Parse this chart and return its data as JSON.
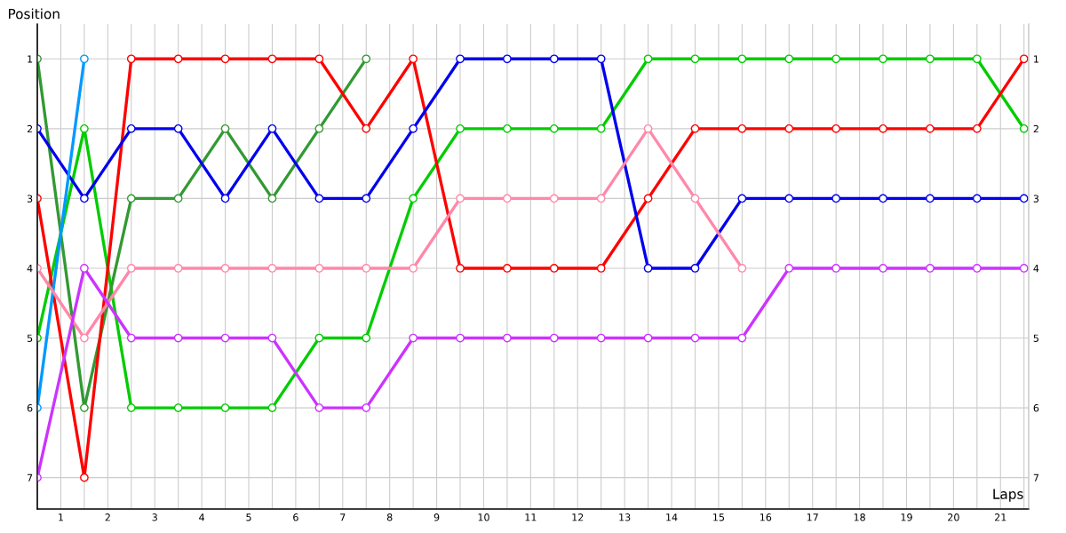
{
  "chart_data": {
    "type": "line",
    "xlabel": "Laps",
    "ylabel": "Position",
    "x": [
      0,
      1,
      2,
      3,
      4,
      5,
      6,
      7,
      8,
      9,
      10,
      11,
      12,
      13,
      14,
      15,
      16,
      17,
      18,
      19,
      20,
      21
    ],
    "series": [
      {
        "color": "#00cc00",
        "values": [
          5,
          2,
          6,
          6,
          6,
          6,
          5,
          5,
          3,
          2,
          2,
          2,
          2,
          1,
          1,
          1,
          1,
          1,
          1,
          1,
          1,
          2
        ]
      },
      {
        "color": "#339933",
        "values": [
          1,
          6,
          3,
          3,
          2,
          3,
          2,
          1,
          null,
          null,
          null,
          null,
          null,
          null,
          null,
          null,
          null,
          null,
          null,
          null,
          null,
          null
        ]
      },
      {
        "color": "#ff0000",
        "values": [
          3,
          7,
          1,
          1,
          1,
          1,
          1,
          2,
          1,
          4,
          4,
          4,
          4,
          3,
          2,
          2,
          2,
          2,
          2,
          2,
          2,
          1
        ]
      },
      {
        "color": "#0000ee",
        "values": [
          2,
          3,
          2,
          2,
          3,
          2,
          3,
          3,
          2,
          1,
          1,
          1,
          1,
          4,
          4,
          3,
          3,
          3,
          3,
          3,
          3,
          3
        ]
      },
      {
        "color": "#0099ff",
        "values": [
          6,
          1,
          null,
          null,
          null,
          null,
          null,
          null,
          null,
          null,
          null,
          null,
          null,
          null,
          null,
          null,
          null,
          null,
          null,
          null,
          null,
          null
        ]
      },
      {
        "color": "#ff88aa",
        "values": [
          4,
          5,
          4,
          4,
          4,
          4,
          4,
          4,
          4,
          3,
          3,
          3,
          3,
          2,
          3,
          4,
          null,
          null,
          null,
          null,
          null,
          null
        ]
      },
      {
        "color": "#cc33ff",
        "values": [
          7,
          4,
          5,
          5,
          5,
          5,
          6,
          6,
          5,
          5,
          5,
          5,
          5,
          5,
          5,
          5,
          4,
          4,
          4,
          4,
          4,
          4
        ]
      }
    ],
    "xlim": [
      0,
      21.1
    ],
    "xticks": [
      {
        "value": 0,
        "label": null
      },
      {
        "value": 0.5,
        "label": "1"
      },
      {
        "value": 1,
        "label": null
      },
      {
        "value": 1.5,
        "label": "2"
      },
      {
        "value": 2,
        "label": null
      },
      {
        "value": 2.5,
        "label": "3"
      },
      {
        "value": 3,
        "label": null
      },
      {
        "value": 3.5,
        "label": "4"
      },
      {
        "value": 4,
        "label": null
      },
      {
        "value": 4.5,
        "label": "5"
      },
      {
        "value": 5,
        "label": null
      },
      {
        "value": 5.5,
        "label": "6"
      },
      {
        "value": 6,
        "label": null
      },
      {
        "value": 6.5,
        "label": "7"
      },
      {
        "value": 7,
        "label": null
      },
      {
        "value": 7.5,
        "label": "8"
      },
      {
        "value": 8,
        "label": null
      },
      {
        "value": 8.5,
        "label": "9"
      },
      {
        "value": 9,
        "label": null
      },
      {
        "value": 9.5,
        "label": "10"
      },
      {
        "value": 10,
        "label": null
      },
      {
        "value": 10.5,
        "label": "11"
      },
      {
        "value": 11,
        "label": null
      },
      {
        "value": 11.5,
        "label": "12"
      },
      {
        "value": 12,
        "label": null
      },
      {
        "value": 12.5,
        "label": "13"
      },
      {
        "value": 13,
        "label": null
      },
      {
        "value": 13.5,
        "label": "14"
      },
      {
        "value": 14,
        "label": null
      },
      {
        "value": 14.5,
        "label": "15"
      },
      {
        "value": 15,
        "label": null
      },
      {
        "value": 15.5,
        "label": "16"
      },
      {
        "value": 16,
        "label": null
      },
      {
        "value": 16.5,
        "label": "17"
      },
      {
        "value": 17,
        "label": null
      },
      {
        "value": 17.5,
        "label": "18"
      },
      {
        "value": 18,
        "label": null
      },
      {
        "value": 18.5,
        "label": "19"
      },
      {
        "value": 19,
        "label": null
      },
      {
        "value": 19.5,
        "label": "20"
      },
      {
        "value": 20,
        "label": null
      },
      {
        "value": 20.5,
        "label": "21"
      },
      {
        "value": 21,
        "label": null
      }
    ],
    "ylim": [
      7.45,
      0.5
    ],
    "yticks": [
      1,
      2,
      3,
      4,
      5,
      6,
      7
    ],
    "y2lim": [
      7.45,
      0.5
    ],
    "y2ticks": [
      1,
      2,
      3,
      4,
      5,
      6,
      7
    ],
    "grid": true,
    "marker": "circle",
    "line_style": "solid",
    "legend": false
  }
}
